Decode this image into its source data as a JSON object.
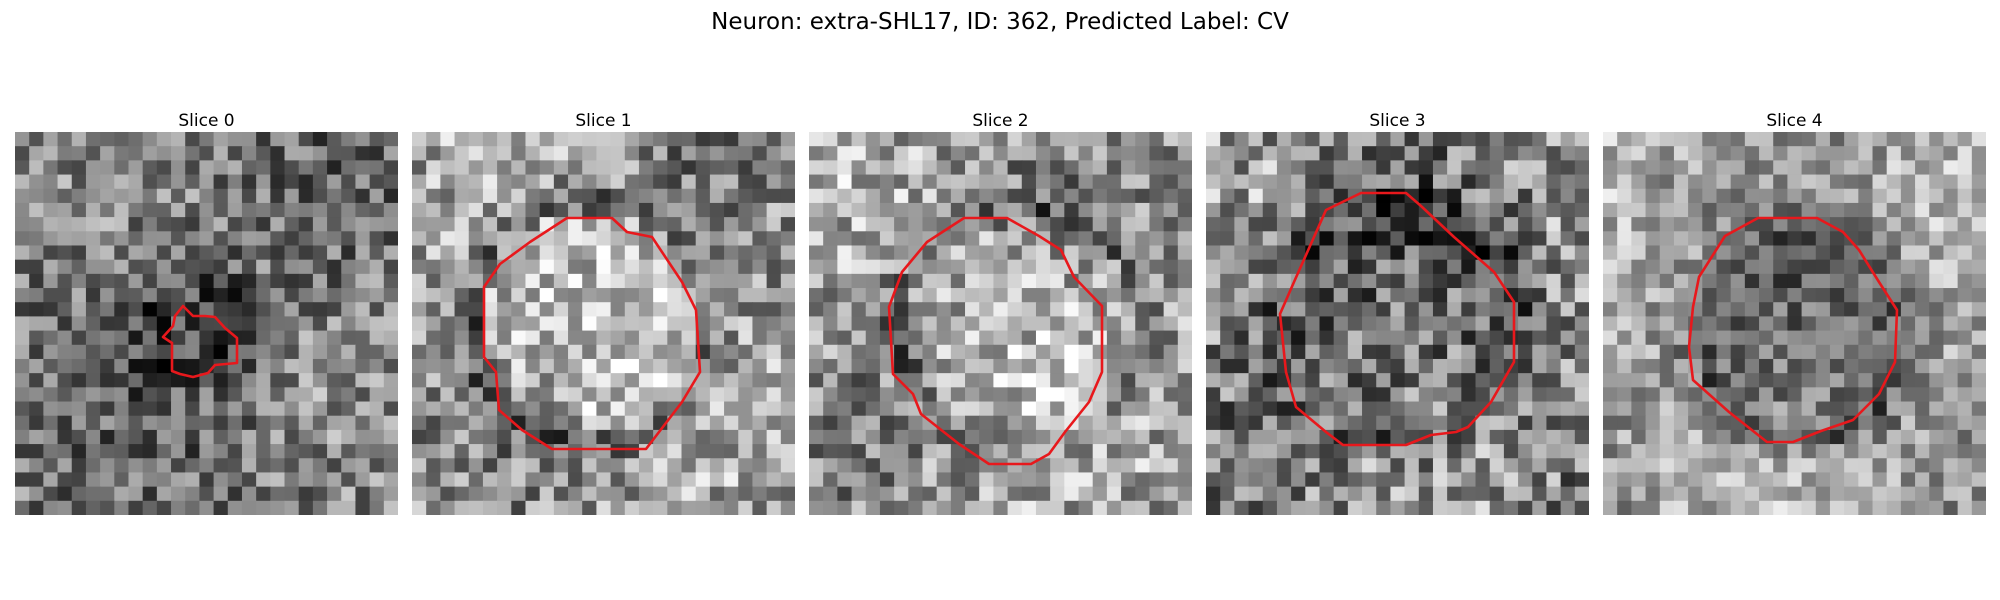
{
  "figure": {
    "title": "Neuron: extra-SHL17, ID: 362, Predicted Label: CV"
  },
  "panels": [
    {
      "title": "Slice 0",
      "contour_color": "#e8181c"
    },
    {
      "title": "Slice 1",
      "contour_color": "#e8181c"
    },
    {
      "title": "Slice 2",
      "contour_color": "#e8181c"
    },
    {
      "title": "Slice 3",
      "contour_color": "#e8181c"
    },
    {
      "title": "Slice 4",
      "contour_color": "#e8181c"
    }
  ]
}
